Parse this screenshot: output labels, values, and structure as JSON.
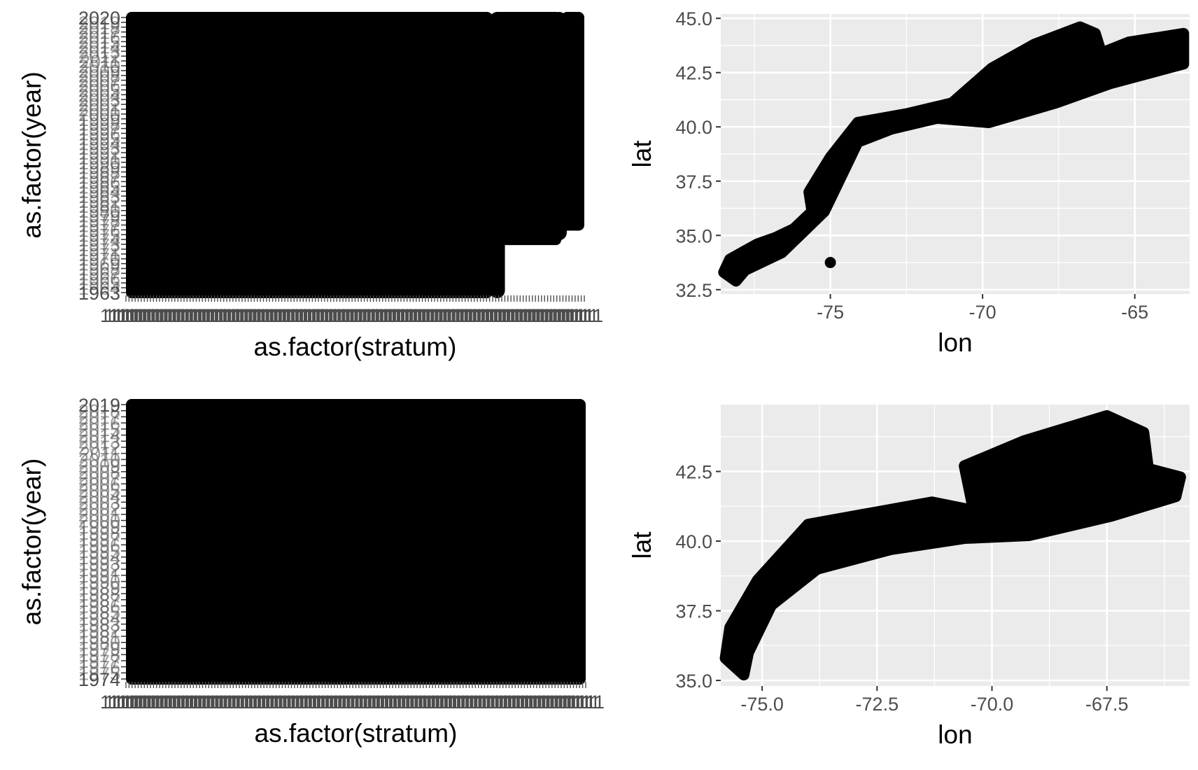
{
  "chart_data": [
    {
      "panel": "top-left",
      "type": "scatter",
      "title": "",
      "xlabel": "as.factor(stratum)",
      "ylabel": "as.factor(year)",
      "grid": false,
      "background": "#ffffff",
      "point_color": "#000000",
      "overplotted": true,
      "y_tick_labels_first_last": [
        "1963",
        "2020"
      ],
      "x_tick_labels_illegible": true,
      "x_tick_label_glyph": "1",
      "y_range": [
        1963,
        2020
      ],
      "filled_regions": [
        {
          "x_frac": [
            0.0,
            0.8
          ],
          "y": [
            1963,
            2020
          ]
        },
        {
          "x_frac": [
            0.8,
            0.95
          ],
          "y": [
            1974,
            2020
          ]
        },
        {
          "x_frac": [
            0.95,
            1.0
          ],
          "y": [
            1977,
            2020
          ]
        }
      ],
      "sparse_columns": [
        {
          "x_frac": 0.81,
          "y_range": [
            1963,
            2020
          ]
        },
        {
          "x_frac": 0.945,
          "y_range": [
            1975,
            2020
          ]
        }
      ]
    },
    {
      "panel": "top-right",
      "type": "scatter",
      "title": "",
      "xlabel": "lon",
      "ylabel": "lat",
      "grid": true,
      "background": "#ebebeb",
      "point_color": "#000000",
      "xlim": [
        -78.6,
        -63.2
      ],
      "ylim": [
        32.3,
        45.2
      ],
      "x_ticks": [
        -75,
        -70,
        -65
      ],
      "x_tick_labels": [
        "-75",
        "-70",
        "-65"
      ],
      "y_ticks": [
        32.5,
        35.0,
        37.5,
        40.0,
        42.5,
        45.0
      ],
      "y_tick_labels": [
        "32.5",
        "35.0",
        "37.5",
        "40.0",
        "42.5",
        "45.0"
      ],
      "outlier_points": [
        {
          "lon": -75.0,
          "lat": 33.75
        }
      ],
      "points_outline": [
        [
          -78.3,
          33.9
        ],
        [
          -77.4,
          34.6
        ],
        [
          -76.8,
          34.9
        ],
        [
          -76.2,
          35.3
        ],
        [
          -75.6,
          36.1
        ],
        [
          -75.7,
          37.0
        ],
        [
          -75.0,
          38.6
        ],
        [
          -74.1,
          40.2
        ],
        [
          -72.5,
          40.6
        ],
        [
          -71.0,
          41.1
        ],
        [
          -69.7,
          42.7
        ],
        [
          -68.3,
          43.8
        ],
        [
          -66.8,
          44.6
        ],
        [
          -66.3,
          44.3
        ],
        [
          -66.1,
          43.4
        ],
        [
          -65.2,
          43.9
        ],
        [
          -63.4,
          44.3
        ],
        [
          -63.4,
          42.9
        ],
        [
          -65.8,
          42.0
        ],
        [
          -67.6,
          41.1
        ],
        [
          -69.8,
          40.2
        ],
        [
          -71.5,
          40.4
        ],
        [
          -73.0,
          39.9
        ],
        [
          -74.1,
          39.3
        ],
        [
          -75.2,
          36.1
        ],
        [
          -76.6,
          34.2
        ],
        [
          -77.8,
          33.4
        ],
        [
          -78.1,
          32.9
        ],
        [
          -78.5,
          33.3
        ]
      ]
    },
    {
      "panel": "bottom-left",
      "type": "scatter",
      "title": "",
      "xlabel": "as.factor(stratum)",
      "ylabel": "as.factor(year)",
      "grid": false,
      "background": "#ffffff",
      "point_color": "#000000",
      "overplotted": true,
      "y_tick_labels_first_last": [
        "1974",
        "2019"
      ],
      "x_tick_labels_illegible": true,
      "x_tick_label_glyph": "1",
      "y_range": [
        1974,
        2019
      ],
      "filled_regions": [
        {
          "x_frac": [
            0.0,
            1.0
          ],
          "y": [
            1974,
            2019
          ]
        }
      ]
    },
    {
      "panel": "bottom-right",
      "type": "scatter",
      "title": "",
      "xlabel": "lon",
      "ylabel": "lat",
      "grid": true,
      "background": "#ebebeb",
      "point_color": "#000000",
      "xlim": [
        -75.9,
        -65.7
      ],
      "ylim": [
        34.8,
        44.9
      ],
      "x_ticks": [
        -75.0,
        -72.5,
        -70.0,
        -67.5
      ],
      "x_tick_labels": [
        "-75.0",
        "-72.5",
        "-70.0",
        "-67.5"
      ],
      "y_ticks": [
        35.0,
        37.5,
        40.0,
        42.5
      ],
      "y_tick_labels": [
        "35.0",
        "37.5",
        "40.0",
        "42.5"
      ],
      "outlier_points": [],
      "points_outline": [
        [
          -75.7,
          36.9
        ],
        [
          -75.1,
          38.6
        ],
        [
          -74.0,
          40.6
        ],
        [
          -73.0,
          40.9
        ],
        [
          -71.3,
          41.4
        ],
        [
          -70.4,
          41.1
        ],
        [
          -70.6,
          42.7
        ],
        [
          -69.3,
          43.6
        ],
        [
          -67.5,
          44.5
        ],
        [
          -66.7,
          43.9
        ],
        [
          -66.6,
          42.6
        ],
        [
          -65.9,
          42.3
        ],
        [
          -66.0,
          41.6
        ],
        [
          -67.4,
          40.9
        ],
        [
          -69.2,
          40.2
        ],
        [
          -70.6,
          40.1
        ],
        [
          -72.2,
          39.7
        ],
        [
          -73.8,
          39.0
        ],
        [
          -74.8,
          37.7
        ],
        [
          -75.3,
          36.0
        ],
        [
          -75.4,
          35.2
        ],
        [
          -75.8,
          35.8
        ]
      ]
    }
  ]
}
